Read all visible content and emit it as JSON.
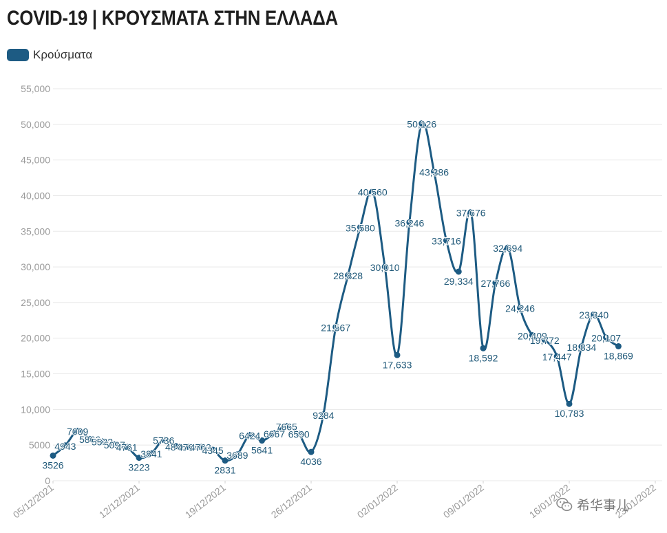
{
  "title": "COVID-19 | ΚΡΟΥΣΜΑΤΑ ΣΤΗΝ ΕΛΛΑΔΑ",
  "legend": {
    "label": "Κρούσματα"
  },
  "colors": {
    "series": "#1d5b83",
    "label": "#1f5878",
    "grid": "#e8e8e8",
    "axis_text": "#9a9a9a"
  },
  "watermark": {
    "text": "希华事儿",
    "icon": "wechat-icon"
  },
  "chart_data": {
    "type": "line",
    "title": "COVID-19 | ΚΡΟΥΣΜΑΤΑ ΣΤΗΝ ΕΛΛΑΔΑ",
    "xlabel": "",
    "ylabel": "",
    "ylim": [
      0,
      55000
    ],
    "grid": true,
    "legend_position": "top-left",
    "x_range": [
      "05/12/2021",
      "23/01/2022"
    ],
    "yticks": [
      "0",
      "5000",
      "10,000",
      "15,000",
      "20,000",
      "25,000",
      "30,000",
      "35,000",
      "40,000",
      "45,000",
      "50,000",
      "55,000"
    ],
    "xticks": [
      "05/12/2021",
      "12/12/2021",
      "19/12/2021",
      "26/12/2021",
      "02/01/2022",
      "09/01/2022",
      "16/01/2022",
      "23/01/2022"
    ],
    "series": [
      {
        "name": "Κρούσματα",
        "points": [
          {
            "x": "05/12/2021",
            "y": 3526,
            "label": "3526"
          },
          {
            "x": "06/12/2021",
            "y": 4943,
            "label": "4943"
          },
          {
            "x": "07/12/2021",
            "y": 7009,
            "label": "7009"
          },
          {
            "x": "08/12/2021",
            "y": 5866,
            "label": "5866"
          },
          {
            "x": "09/12/2021",
            "y": 5532,
            "label": "5532"
          },
          {
            "x": "10/12/2021",
            "y": 5097,
            "label": "5097"
          },
          {
            "x": "11/12/2021",
            "y": 4761,
            "label": "4761"
          },
          {
            "x": "12/12/2021",
            "y": 3223,
            "label": "3223"
          },
          {
            "x": "13/12/2021",
            "y": 3841,
            "label": "3841"
          },
          {
            "x": "14/12/2021",
            "y": 5736,
            "label": "5736"
          },
          {
            "x": "15/12/2021",
            "y": 4846,
            "label": "4846"
          },
          {
            "x": "16/12/2021",
            "y": 4764,
            "label": "4764"
          },
          {
            "x": "17/12/2021",
            "y": 4763,
            "label": "4763"
          },
          {
            "x": "18/12/2021",
            "y": 4345,
            "label": "4345"
          },
          {
            "x": "19/12/2021",
            "y": 2831,
            "label": "2831"
          },
          {
            "x": "20/12/2021",
            "y": 3689,
            "label": "3689"
          },
          {
            "x": "21/12/2021",
            "y": 6424,
            "label": "6424"
          },
          {
            "x": "22/12/2021",
            "y": 5641,
            "label": "5641"
          },
          {
            "x": "23/12/2021",
            "y": 6667,
            "label": "6667"
          },
          {
            "x": "24/12/2021",
            "y": 7665,
            "label": "7665"
          },
          {
            "x": "25/12/2021",
            "y": 6590,
            "label": "6590"
          },
          {
            "x": "26/12/2021",
            "y": 4036,
            "label": "4036"
          },
          {
            "x": "27/12/2021",
            "y": 9284,
            "label": "9284"
          },
          {
            "x": "28/12/2021",
            "y": 21567,
            "label": "21,567"
          },
          {
            "x": "29/12/2021",
            "y": 28828,
            "label": "28,828"
          },
          {
            "x": "30/12/2021",
            "y": 35580,
            "label": "35,580"
          },
          {
            "x": "31/12/2021",
            "y": 40560,
            "label": "40,560"
          },
          {
            "x": "01/01/2022",
            "y": 30010,
            "label": "30,010"
          },
          {
            "x": "02/01/2022",
            "y": 17633,
            "label": "17,633"
          },
          {
            "x": "03/01/2022",
            "y": 36246,
            "label": "36,246"
          },
          {
            "x": "04/01/2022",
            "y": 50126,
            "label": "50,126"
          },
          {
            "x": "05/01/2022",
            "y": 43386,
            "label": "43,386"
          },
          {
            "x": "06/01/2022",
            "y": 33716,
            "label": "33,716"
          },
          {
            "x": "07/01/2022",
            "y": 29334,
            "label": "29,334"
          },
          {
            "x": "08/01/2022",
            "y": 37676,
            "label": "37,676"
          },
          {
            "x": "09/01/2022",
            "y": 18592,
            "label": "18,592"
          },
          {
            "x": "10/01/2022",
            "y": 27766,
            "label": "27,766"
          },
          {
            "x": "11/01/2022",
            "y": 32694,
            "label": "32,694"
          },
          {
            "x": "12/01/2022",
            "y": 24246,
            "label": "24,246"
          },
          {
            "x": "13/01/2022",
            "y": 20409,
            "label": "20,409"
          },
          {
            "x": "14/01/2022",
            "y": 19772,
            "label": "19,772"
          },
          {
            "x": "15/01/2022",
            "y": 17447,
            "label": "17,447"
          },
          {
            "x": "16/01/2022",
            "y": 10783,
            "label": "10,783"
          },
          {
            "x": "17/01/2022",
            "y": 18834,
            "label": "18,834"
          },
          {
            "x": "18/01/2022",
            "y": 23340,
            "label": "23,340"
          },
          {
            "x": "19/01/2022",
            "y": 20107,
            "label": "20,107"
          },
          {
            "x": "20/01/2022",
            "y": 18869,
            "label": "18,869"
          }
        ]
      }
    ]
  }
}
